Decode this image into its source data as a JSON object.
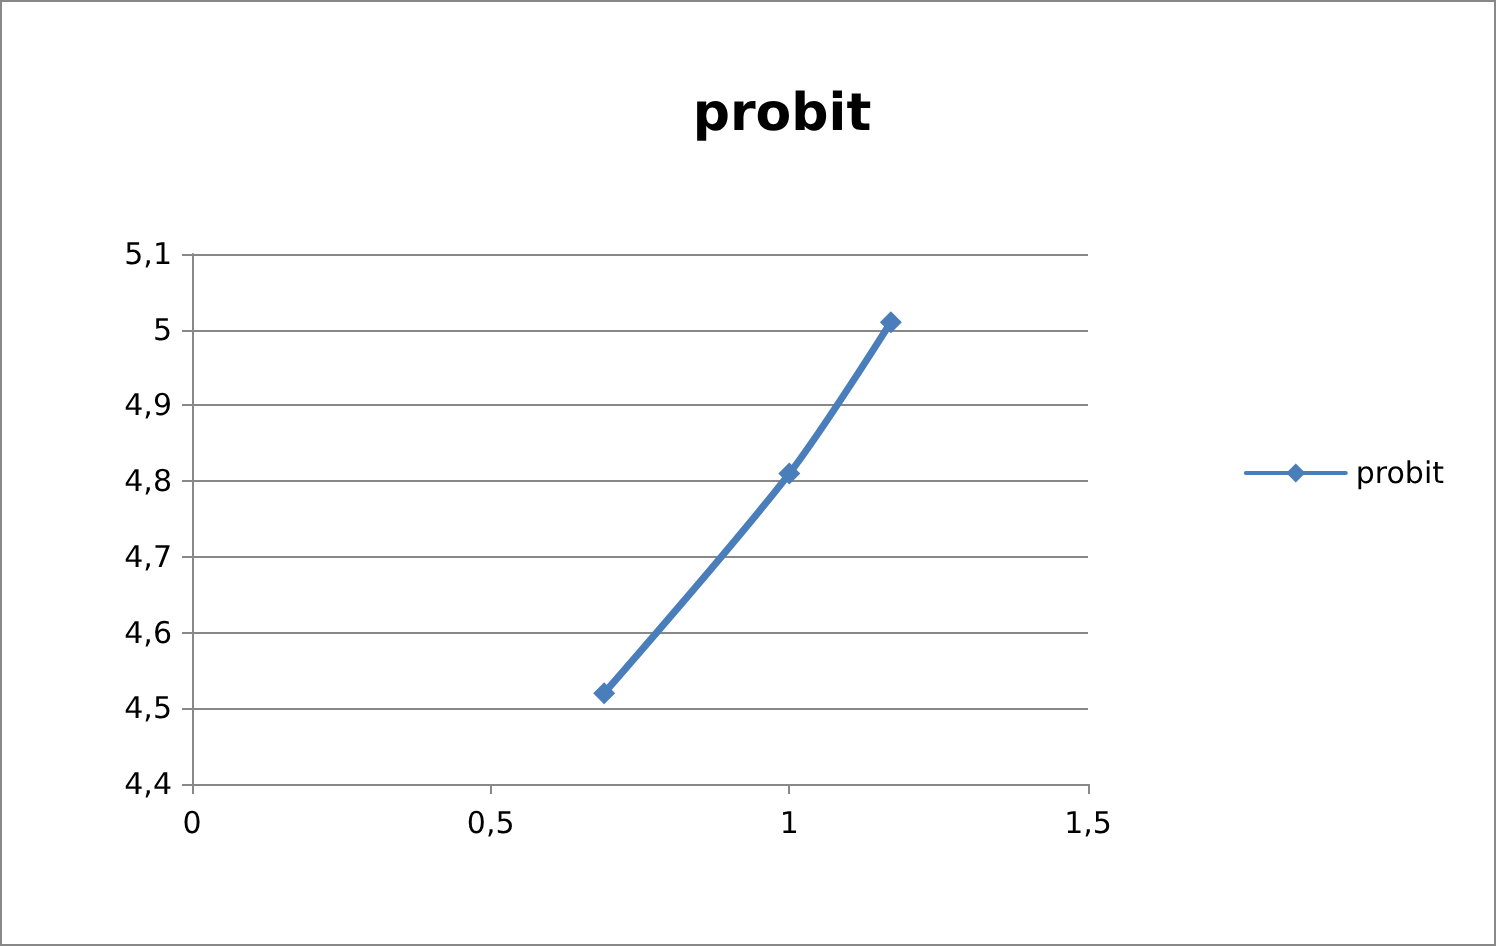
{
  "chart_data": {
    "type": "line",
    "title": "probit",
    "x": [
      0.69,
      1.0,
      1.17
    ],
    "series": [
      {
        "name": "probit",
        "color": "#4a7ebb",
        "values": [
          4.52,
          4.81,
          5.01
        ]
      }
    ],
    "xlim": [
      0,
      1.5
    ],
    "xticks": [
      {
        "value": 0,
        "label": "0"
      },
      {
        "value": 0.5,
        "label": "0,5"
      },
      {
        "value": 1,
        "label": "1"
      },
      {
        "value": 1.5,
        "label": "1,5"
      }
    ],
    "ylim": [
      4.4,
      5.1
    ],
    "yticks": [
      {
        "value": 4.4,
        "label": "4,4"
      },
      {
        "value": 4.5,
        "label": "4,5"
      },
      {
        "value": 4.6,
        "label": "4,6"
      },
      {
        "value": 4.7,
        "label": "4,7"
      },
      {
        "value": 4.8,
        "label": "4,8"
      },
      {
        "value": 4.9,
        "label": "4,9"
      },
      {
        "value": 5,
        "label": "5"
      },
      {
        "value": 5.1,
        "label": "5,1"
      }
    ],
    "grid": "y",
    "legend": "right",
    "marker": "diamond",
    "line_style": "solid"
  }
}
